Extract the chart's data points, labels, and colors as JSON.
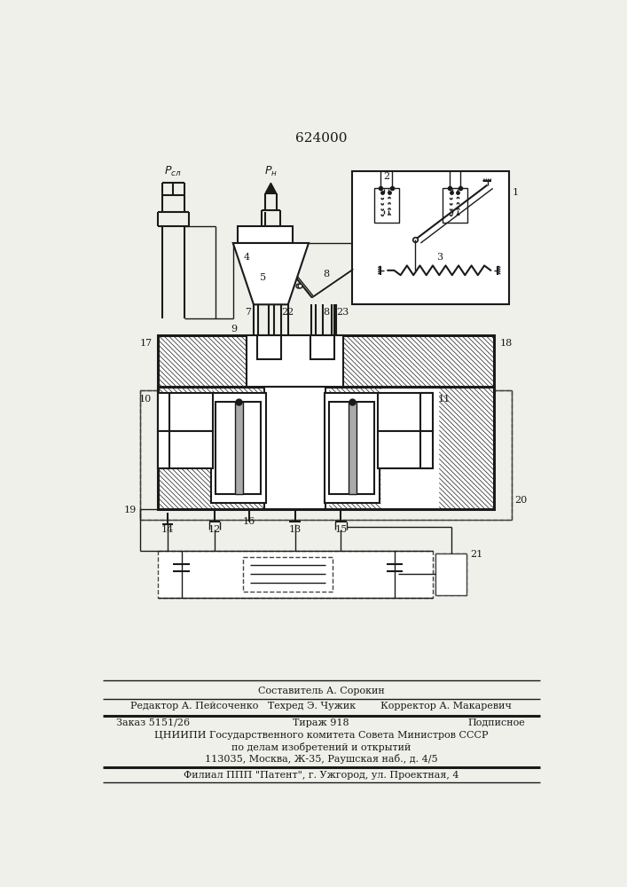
{
  "title": "624000",
  "bg_color": "#f0f0eb",
  "line_color": "#1a1a1a",
  "footer_lines": [
    [
      "center",
      "Составитель А. Сорокин"
    ],
    [
      "left",
      "Редактор А. Пейсоченко"
    ],
    [
      "center",
      "Техред Э. Чужик"
    ],
    [
      "right",
      "Корректор А. Макаревич"
    ],
    [
      "left",
      "Заказ 5151/26"
    ],
    [
      "center",
      "Тираж 918"
    ],
    [
      "right",
      "Подписное"
    ],
    [
      "center",
      "ЦНИИПИ Государственного комитета Совета Министров СССР"
    ],
    [
      "center",
      "по делам изобретений и открытий"
    ],
    [
      "center",
      "113035, Москва, Ж-35, Раушская наб., д. 4/5"
    ],
    [
      "center",
      "Филиал ППП \"Патент\", г. Ужгород, ул. Проектная, 4"
    ]
  ]
}
